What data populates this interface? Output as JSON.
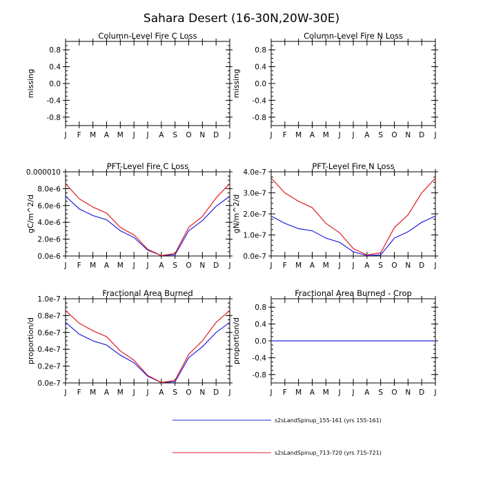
{
  "title": "Sahara Desert (16-30N,20W-30E)",
  "colors": {
    "series1": "#2020e0",
    "series2": "#e01c1c"
  },
  "legend": [
    {
      "label": "s2sLandSpinup_155-161 (yrs 155-161)",
      "color": "#2020e0"
    },
    {
      "label": "s2sLandSpinup_713-720 (yrs 715-721)",
      "color": "#e01c1c"
    }
  ],
  "chart_data": [
    {
      "type": "line",
      "title": "Column-Level Fire C Loss",
      "ylabel": "missing",
      "categories": [
        "J",
        "F",
        "M",
        "A",
        "M",
        "J",
        "J",
        "A",
        "S",
        "O",
        "N",
        "D",
        "J"
      ],
      "ylim": [
        -1.0,
        1.0
      ],
      "yticks": [
        -0.8,
        -0.4,
        0.0,
        0.4,
        0.8
      ],
      "ytick_labels": [
        "-0.8",
        "-0.4",
        "0.0",
        "0.4",
        "0.8"
      ],
      "series": []
    },
    {
      "type": "line",
      "title": "Column-Level Fire N Loss",
      "ylabel": "missing",
      "categories": [
        "J",
        "F",
        "M",
        "A",
        "M",
        "J",
        "J",
        "A",
        "S",
        "O",
        "N",
        "D",
        "J"
      ],
      "ylim": [
        -1.0,
        1.0
      ],
      "yticks": [
        -0.8,
        -0.4,
        0.0,
        0.4,
        0.8
      ],
      "ytick_labels": [
        "-0.8",
        "-0.4",
        "0.0",
        "0.4",
        "0.8"
      ],
      "series": []
    },
    {
      "type": "line",
      "title": "PFT-Level Fire C Loss",
      "ylabel": "gC/m^2/d",
      "categories": [
        "J",
        "F",
        "M",
        "A",
        "M",
        "J",
        "J",
        "A",
        "S",
        "O",
        "N",
        "D",
        "J"
      ],
      "ylim": [
        0,
        1e-05
      ],
      "yticks": [
        0,
        2e-06,
        4e-06,
        6e-06,
        8e-06,
        1e-05
      ],
      "ytick_labels": [
        "0.0e-6",
        "2.0e-6",
        "4.0e-6",
        "6.0e-6",
        "8.0e-6",
        "0.000010"
      ],
      "series": [
        {
          "color": "#2020e0",
          "values": [
            7.1e-06,
            5.6e-06,
            4.8e-06,
            4.3e-06,
            3e-06,
            2.2e-06,
            7e-07,
            5e-08,
            1.5e-07,
            3e-06,
            4.2e-06,
            5.9e-06,
            7.1e-06
          ]
        },
        {
          "color": "#e01c1c",
          "values": [
            8.6e-06,
            6.8e-06,
            5.8e-06,
            5.1e-06,
            3.4e-06,
            2.5e-06,
            8e-07,
            5e-08,
            3e-07,
            3.4e-06,
            4.7e-06,
            6.9e-06,
            8.6e-06
          ]
        }
      ]
    },
    {
      "type": "line",
      "title": "PFT-Level Fire N Loss",
      "ylabel": "gN/m^2/d",
      "categories": [
        "J",
        "F",
        "M",
        "A",
        "M",
        "J",
        "J",
        "A",
        "S",
        "O",
        "N",
        "D",
        "J"
      ],
      "ylim": [
        0,
        4e-07
      ],
      "yticks": [
        0,
        1e-07,
        2e-07,
        3e-07,
        4e-07
      ],
      "ytick_labels": [
        "0.0e-7",
        "1.0e-7",
        "2.0e-7",
        "3.0e-7",
        "4.0e-7"
      ],
      "series": [
        {
          "color": "#2020e0",
          "values": [
            1.9e-07,
            1.55e-07,
            1.3e-07,
            1.2e-07,
            8.5e-08,
            6.5e-08,
            2e-08,
            2e-09,
            5e-09,
            8.5e-08,
            1.15e-07,
            1.6e-07,
            1.9e-07
          ]
        },
        {
          "color": "#e01c1c",
          "values": [
            3.7e-07,
            3e-07,
            2.6e-07,
            2.3e-07,
            1.55e-07,
            1.1e-07,
            3.5e-08,
            5e-09,
            1.5e-08,
            1.35e-07,
            1.95e-07,
            3e-07,
            3.7e-07
          ]
        }
      ]
    },
    {
      "type": "line",
      "title": "Fractional Area Burned",
      "ylabel": "proportion/d",
      "categories": [
        "J",
        "F",
        "M",
        "A",
        "M",
        "J",
        "J",
        "A",
        "S",
        "O",
        "N",
        "D",
        "J"
      ],
      "ylim": [
        0,
        1e-07
      ],
      "yticks": [
        0,
        2e-08,
        4e-08,
        6e-08,
        8e-08,
        1e-07
      ],
      "ytick_labels": [
        "0.0e-7",
        "0.2e-7",
        "0.4e-7",
        "0.6e-7",
        "0.8e-7",
        "1.0e-7"
      ],
      "series": [
        {
          "color": "#2020e0",
          "values": [
            7.2e-08,
            5.8e-08,
            5e-08,
            4.5e-08,
            3.3e-08,
            2.4e-08,
            8e-09,
            5e-10,
            1.5e-09,
            3e-08,
            4.3e-08,
            6e-08,
            7.2e-08
          ]
        },
        {
          "color": "#e01c1c",
          "values": [
            8.6e-08,
            7.1e-08,
            6.2e-08,
            5.5e-08,
            3.8e-08,
            2.7e-08,
            9e-09,
            5e-10,
            3e-09,
            3.4e-08,
            5e-08,
            7.2e-08,
            8.6e-08
          ]
        }
      ]
    },
    {
      "type": "line",
      "title": "Fractional Area Burned - Crop",
      "ylabel": "proportion/d",
      "categories": [
        "J",
        "F",
        "M",
        "A",
        "M",
        "J",
        "J",
        "A",
        "S",
        "O",
        "N",
        "D",
        "J"
      ],
      "ylim": [
        -1.0,
        1.0
      ],
      "yticks": [
        -0.8,
        -0.4,
        0.0,
        0.4,
        0.8
      ],
      "ytick_labels": [
        "-0.8",
        "-0.4",
        "0.0",
        "0.4",
        "0.8"
      ],
      "series": [
        {
          "color": "#2020e0",
          "values": [
            0,
            0,
            0,
            0,
            0,
            0,
            0,
            0,
            0,
            0,
            0,
            0,
            0
          ]
        }
      ]
    }
  ]
}
